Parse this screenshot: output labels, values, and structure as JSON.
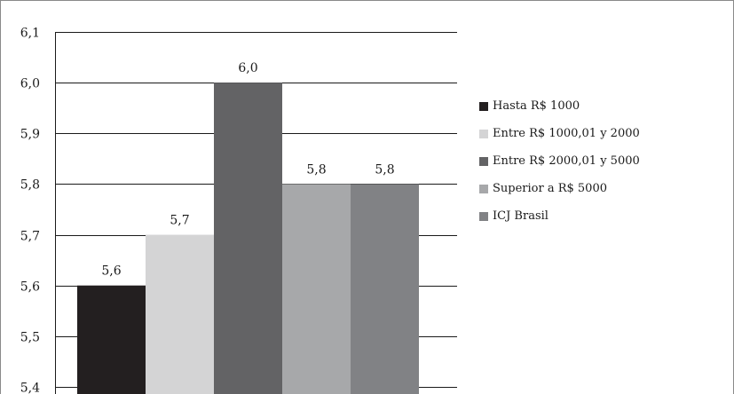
{
  "chart_data": {
    "type": "bar",
    "title": "",
    "xlabel": "",
    "ylabel": "",
    "ylim": [
      5.4,
      6.1
    ],
    "yticks": [
      "5,4",
      "5,5",
      "5,6",
      "5,7",
      "5,8",
      "5,9",
      "6,0",
      "6,1"
    ],
    "ytick_values": [
      5.4,
      5.5,
      5.6,
      5.7,
      5.8,
      5.9,
      6.0,
      6.1
    ],
    "grid": true,
    "legend_position": "right",
    "series": [
      {
        "name": "Hasta R$ 1000",
        "value": 5.6,
        "label": "5,6",
        "color": "#231f20"
      },
      {
        "name": "Entre R$ 1000,01 y 2000",
        "value": 5.7,
        "label": "5,7",
        "color": "#d4d4d5"
      },
      {
        "name": "Entre R$ 2000,01 y 5000",
        "value": 6.0,
        "label": "6,0",
        "color": "#636365"
      },
      {
        "name": "Superior a R$ 5000",
        "value": 5.8,
        "label": "5,8",
        "color": "#a7a8aa"
      },
      {
        "name": "ICJ Brasil",
        "value": 5.8,
        "label": "5,8",
        "color": "#818285"
      }
    ]
  }
}
